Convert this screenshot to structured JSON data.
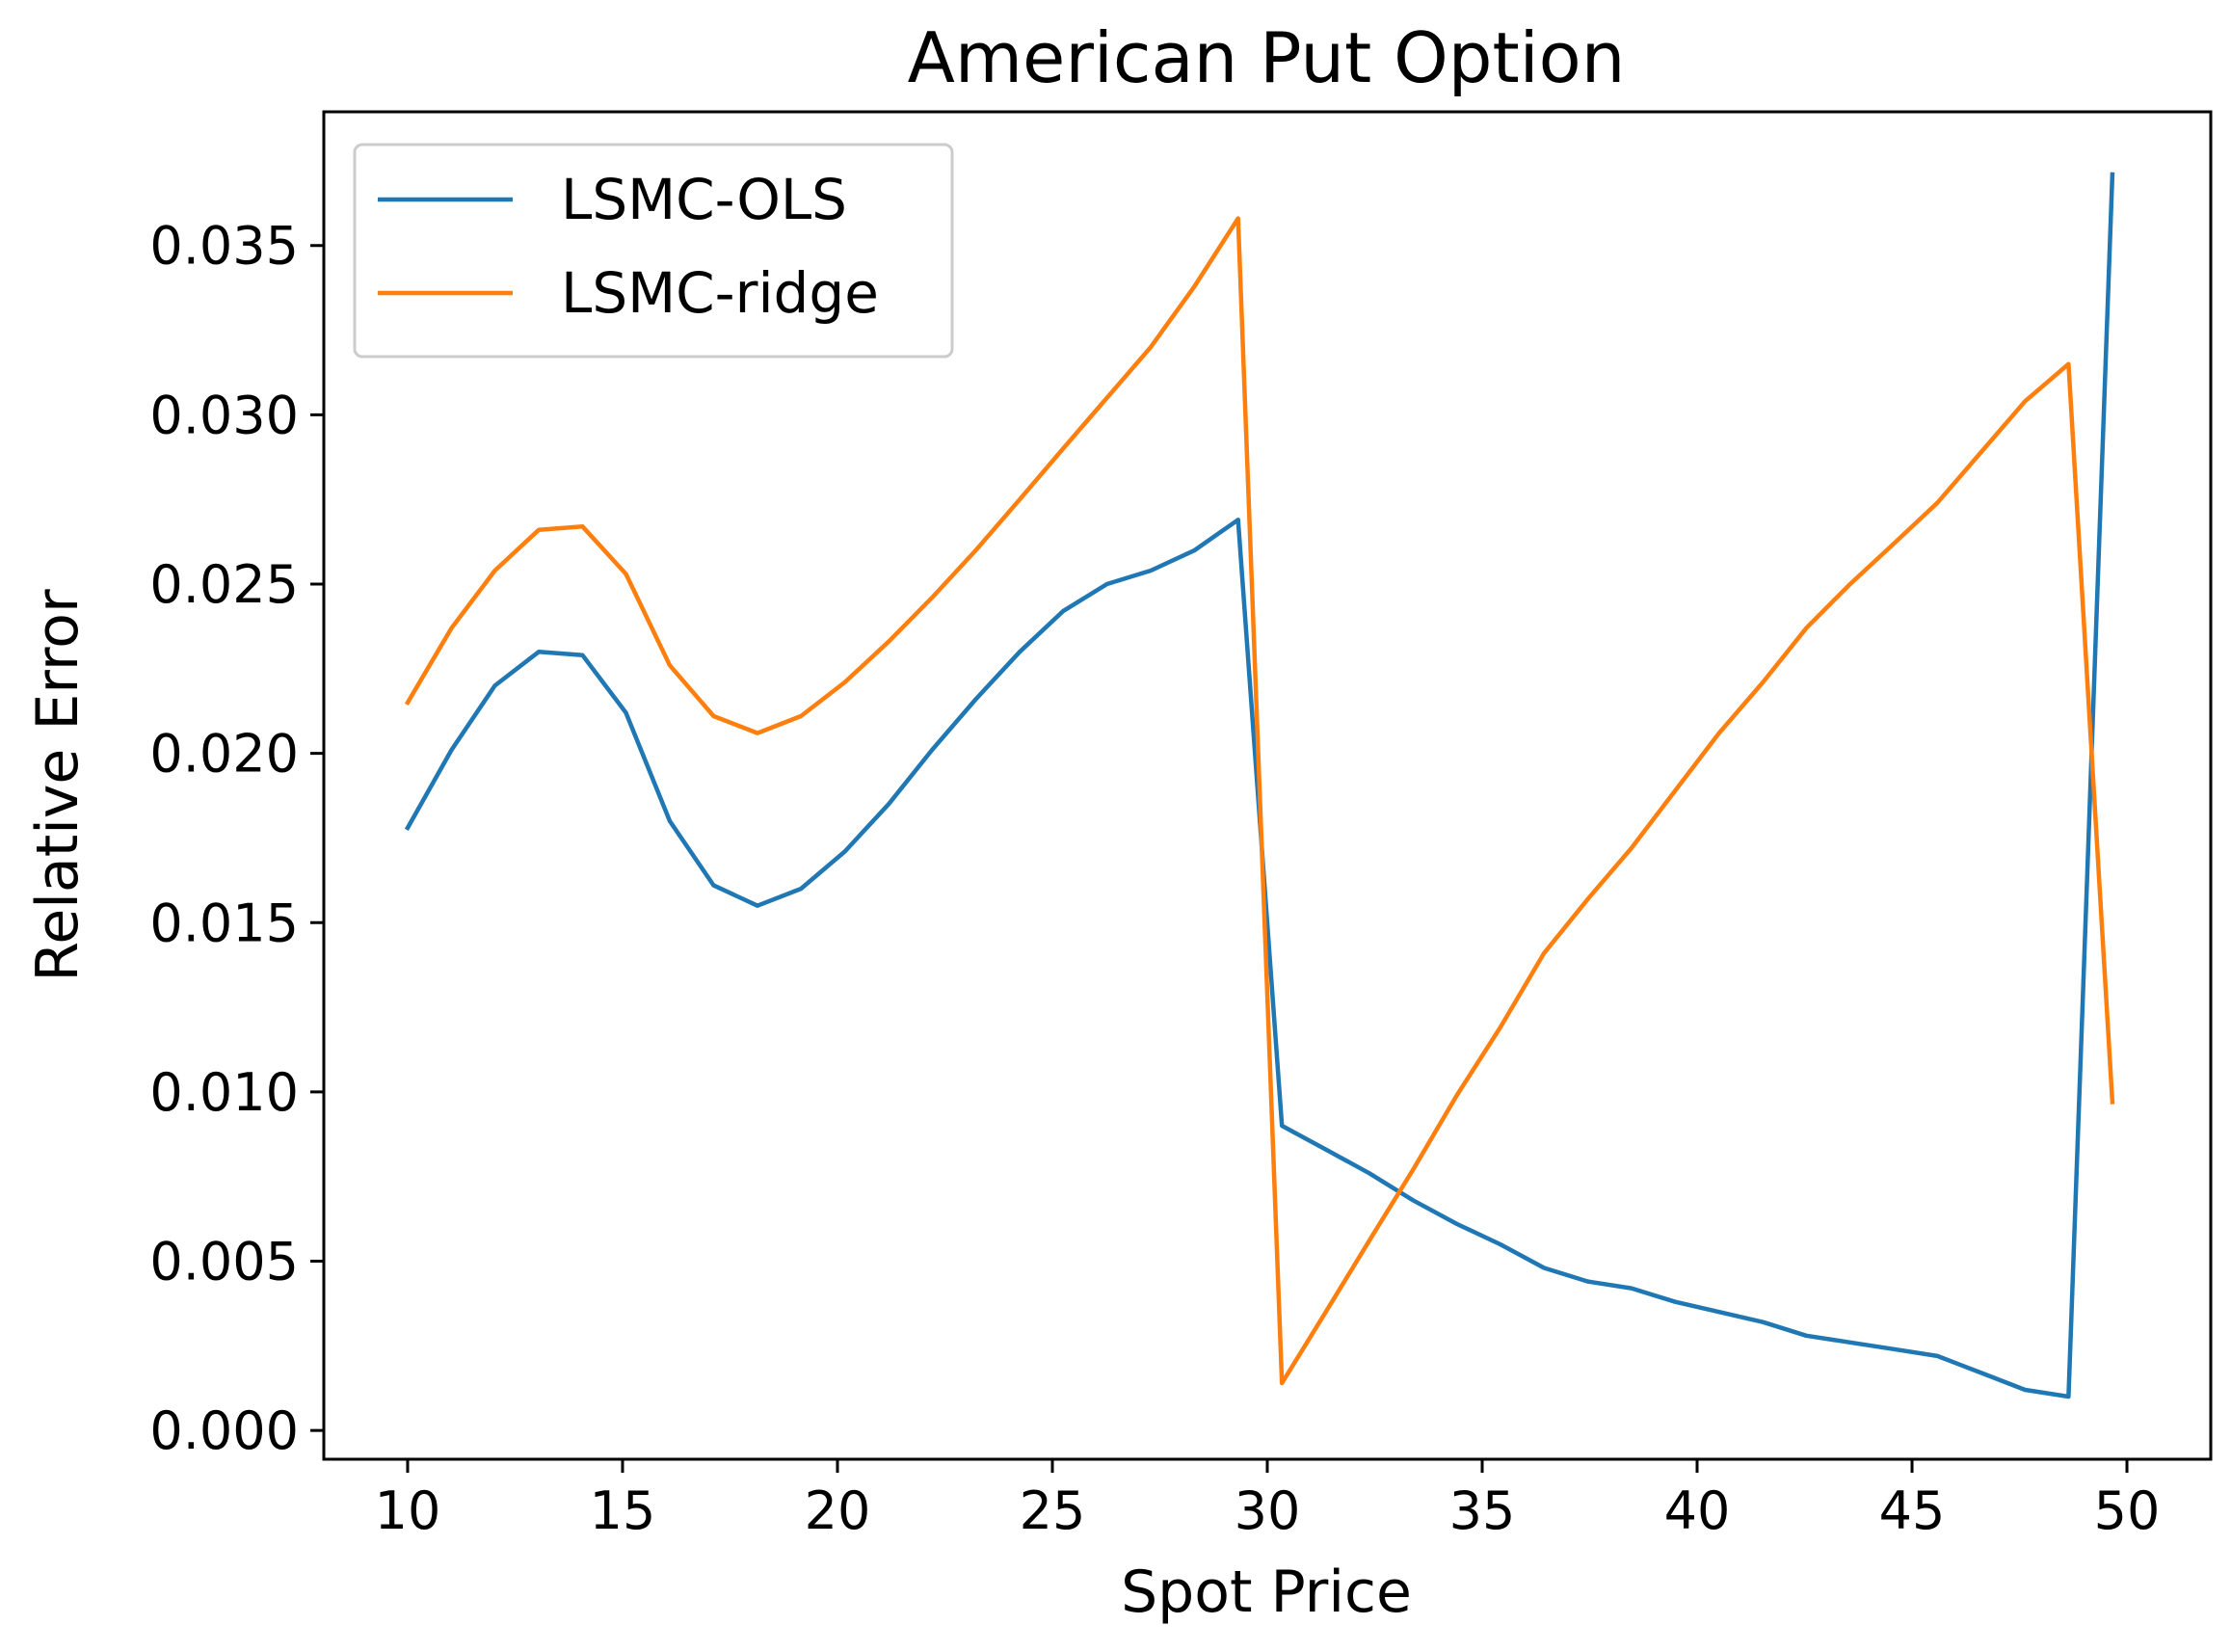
{
  "chart_data": {
    "type": "line",
    "title": "American Put Option",
    "xlabel": "Spot Price",
    "ylabel": "Relative Error",
    "xlim": [
      8.05,
      51.95
    ],
    "ylim": [
      -0.00085,
      0.03895
    ],
    "grid": false,
    "legend_position": "top-left",
    "x_ticks": [
      10,
      15,
      20,
      25,
      30,
      35,
      40,
      45,
      50
    ],
    "y_ticks": [
      0.0,
      0.005,
      0.01,
      0.015,
      0.02,
      0.025,
      0.03,
      0.035
    ],
    "x_tick_labels": [
      "10",
      "15",
      "20",
      "25",
      "30",
      "35",
      "40",
      "45",
      "50"
    ],
    "y_tick_labels": [
      "0.000",
      "0.005",
      "0.010",
      "0.015",
      "0.020",
      "0.025",
      "0.030",
      "0.035"
    ],
    "x": [
      10.0,
      11.02,
      12.03,
      13.05,
      14.07,
      15.08,
      16.1,
      17.12,
      18.14,
      19.15,
      20.17,
      21.19,
      22.2,
      23.22,
      24.24,
      25.25,
      26.27,
      27.29,
      28.31,
      29.32,
      30.34,
      31.36,
      32.37,
      33.39,
      34.41,
      35.42,
      36.44,
      37.46,
      38.47,
      39.49,
      40.51,
      41.53,
      42.54,
      43.56,
      44.58,
      45.59,
      46.61,
      47.63,
      48.64,
      49.66
    ],
    "series": [
      {
        "name": "LSMC-OLS",
        "color": "#1f77b4",
        "values": [
          0.0178,
          0.0201,
          0.022,
          0.023,
          0.0229,
          0.0212,
          0.018,
          0.0161,
          0.0155,
          0.016,
          0.0171,
          0.0185,
          0.0201,
          0.0216,
          0.023,
          0.0242,
          0.025,
          0.0254,
          0.026,
          0.0269,
          0.009,
          0.0083,
          0.0076,
          0.0068,
          0.0061,
          0.0055,
          0.0048,
          0.0044,
          0.0042,
          0.0038,
          0.0035,
          0.0032,
          0.0028,
          0.0026,
          0.0024,
          0.0022,
          0.0017,
          0.0012,
          0.001,
          0.0371
        ]
      },
      {
        "name": "LSMC-ridge",
        "color": "#ff7f0e",
        "values": [
          0.0215,
          0.0237,
          0.0254,
          0.0266,
          0.0267,
          0.0253,
          0.0226,
          0.0211,
          0.0206,
          0.0211,
          0.0221,
          0.0233,
          0.0246,
          0.026,
          0.0275,
          0.029,
          0.0305,
          0.032,
          0.0338,
          0.0358,
          0.0014,
          0.0035,
          0.0056,
          0.0077,
          0.0099,
          0.0119,
          0.0141,
          0.0157,
          0.0172,
          0.0189,
          0.0206,
          0.0221,
          0.0237,
          0.025,
          0.0262,
          0.0274,
          0.0289,
          0.0304,
          0.0315,
          0.0097
        ]
      }
    ]
  }
}
